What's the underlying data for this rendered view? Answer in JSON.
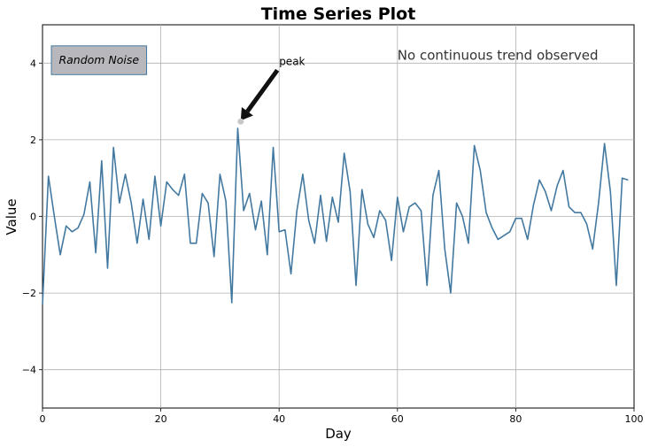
{
  "chart_data": {
    "type": "line",
    "title": "Time Series Plot",
    "xlabel": "Day",
    "ylabel": "Value",
    "xlim": [
      0,
      100
    ],
    "ylim": [
      -5,
      5
    ],
    "xticks": [
      0,
      20,
      40,
      60,
      80,
      100
    ],
    "yticks": [
      -4,
      -2,
      0,
      2,
      4
    ],
    "grid": true,
    "series": [
      {
        "x": [
          0,
          1,
          2,
          3,
          4,
          5,
          6,
          7,
          8,
          9,
          10,
          11,
          12,
          13,
          14,
          15,
          16,
          17,
          18,
          19,
          20,
          21,
          22,
          23,
          24,
          25,
          26,
          27,
          28,
          29,
          30,
          31,
          32,
          33,
          34,
          35,
          36,
          37,
          38,
          39,
          40,
          41,
          42,
          43,
          44,
          45,
          46,
          47,
          48,
          49,
          50,
          51,
          52,
          53,
          54,
          55,
          56,
          57,
          58,
          59,
          60,
          61,
          62,
          63,
          64,
          65,
          66,
          67,
          68,
          69,
          70,
          71,
          72,
          73,
          74,
          75,
          76,
          77,
          78,
          79,
          80,
          81,
          82,
          83,
          84,
          85,
          86,
          87,
          88,
          89,
          90,
          91,
          92,
          93,
          94,
          95,
          96,
          97,
          98,
          99
        ],
        "y": [
          -2.3,
          1.05,
          0.0,
          -1.0,
          -0.25,
          -0.4,
          -0.3,
          0.05,
          0.9,
          -0.95,
          1.45,
          -1.35,
          1.8,
          0.35,
          1.1,
          0.35,
          -0.7,
          0.45,
          -0.6,
          1.05,
          -0.25,
          0.9,
          0.7,
          0.55,
          1.1,
          -0.7,
          -0.7,
          0.6,
          0.35,
          -1.05,
          1.1,
          0.4,
          -2.25,
          2.3,
          0.15,
          0.6,
          -0.35,
          0.4,
          -1.0,
          1.8,
          -0.4,
          -0.35,
          -1.5,
          0.15,
          1.1,
          -0.1,
          -0.7,
          0.55,
          -0.65,
          0.5,
          -0.15,
          1.65,
          0.65,
          -1.8,
          0.7,
          -0.2,
          -0.55,
          0.15,
          -0.1,
          -1.15,
          0.5,
          -0.4,
          0.25,
          0.35,
          0.15,
          -1.8,
          0.55,
          1.2,
          -0.85,
          -2.0,
          0.35,
          0.0,
          -0.7,
          1.85,
          1.2,
          0.1,
          -0.3,
          -0.6,
          -0.5,
          -0.4,
          -0.05,
          -0.05,
          -0.6,
          0.3,
          0.95,
          0.65,
          0.15,
          0.8,
          1.2,
          0.25,
          0.1,
          0.1,
          -0.2,
          -0.85,
          0.35,
          1.9,
          0.65,
          -1.8,
          1.0,
          0.95
        ],
        "color": "#4379a0"
      }
    ],
    "annotations": {
      "peak_label": "peak",
      "peak_point": {
        "x": 33.5,
        "y": 2.5
      },
      "peak_text_at": {
        "x": 40,
        "y": 4
      },
      "box_label": "Random Noise",
      "box_fill": "#b8b8bc",
      "box_edge": "#4379a0",
      "note": "No continuous trend observed",
      "note_at": {
        "x": 60,
        "y": 4.2
      }
    }
  }
}
